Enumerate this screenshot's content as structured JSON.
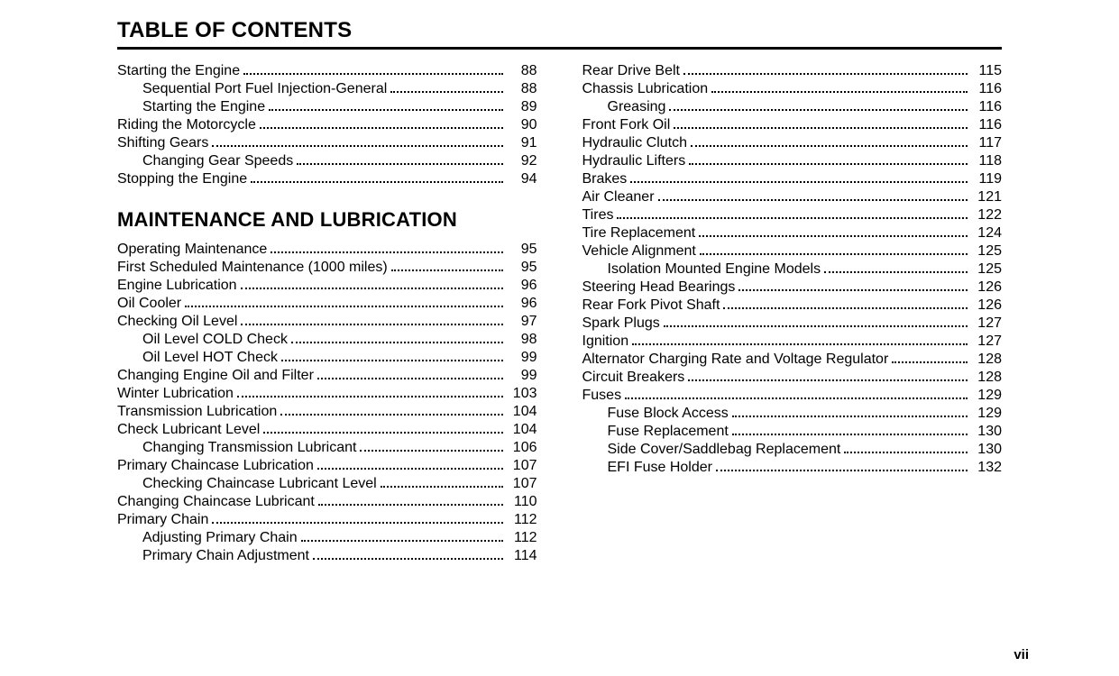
{
  "title": "TABLE OF CONTENTS",
  "pageNumber": "vii",
  "fonts": {
    "body_pt": 16,
    "title_pt": 24,
    "heading_pt": 22
  },
  "colors": {
    "text": "#000000",
    "bg": "#ffffff",
    "rule": "#000000"
  },
  "leftColumn": [
    {
      "type": "entry",
      "indent": 0,
      "text": "Starting the Engine",
      "page": "88"
    },
    {
      "type": "entry",
      "indent": 1,
      "text": "Sequential Port Fuel Injection-General",
      "page": "88"
    },
    {
      "type": "entry",
      "indent": 1,
      "text": "Starting the Engine",
      "page": "89"
    },
    {
      "type": "entry",
      "indent": 0,
      "text": "Riding the Motorcycle",
      "page": "90"
    },
    {
      "type": "entry",
      "indent": 0,
      "text": "Shifting Gears",
      "page": "91"
    },
    {
      "type": "entry",
      "indent": 1,
      "text": "Changing Gear Speeds",
      "page": "92"
    },
    {
      "type": "entry",
      "indent": 0,
      "text": "Stopping the Engine",
      "page": "94"
    },
    {
      "type": "heading",
      "text": "MAINTENANCE AND LUBRICATION"
    },
    {
      "type": "entry",
      "indent": 0,
      "text": "Operating Maintenance",
      "page": "95"
    },
    {
      "type": "entry",
      "indent": 0,
      "text": "First Scheduled Maintenance (1000 miles)",
      "page": "95"
    },
    {
      "type": "entry",
      "indent": 0,
      "text": "Engine Lubrication",
      "page": "96"
    },
    {
      "type": "entry",
      "indent": 0,
      "text": "Oil Cooler",
      "page": "96"
    },
    {
      "type": "entry",
      "indent": 0,
      "text": "Checking Oil Level",
      "page": "97"
    },
    {
      "type": "entry",
      "indent": 1,
      "text": "Oil Level COLD Check",
      "page": "98"
    },
    {
      "type": "entry",
      "indent": 1,
      "text": "Oil Level HOT Check",
      "page": "99"
    },
    {
      "type": "entry",
      "indent": 0,
      "text": "Changing Engine Oil and Filter",
      "page": "99"
    },
    {
      "type": "entry",
      "indent": 0,
      "text": "Winter Lubrication",
      "page": "103"
    },
    {
      "type": "entry",
      "indent": 0,
      "text": "Transmission Lubrication",
      "page": "104"
    },
    {
      "type": "entry",
      "indent": 0,
      "text": "Check Lubricant Level",
      "page": "104"
    },
    {
      "type": "entry",
      "indent": 1,
      "text": "Changing Transmission Lubricant",
      "page": "106"
    },
    {
      "type": "entry",
      "indent": 0,
      "text": "Primary Chaincase Lubrication",
      "page": "107"
    },
    {
      "type": "entry",
      "indent": 1,
      "text": "Checking Chaincase Lubricant Level",
      "page": "107"
    },
    {
      "type": "entry",
      "indent": 0,
      "text": "Changing Chaincase Lubricant",
      "page": "110"
    },
    {
      "type": "entry",
      "indent": 0,
      "text": "Primary Chain",
      "page": "112"
    },
    {
      "type": "entry",
      "indent": 1,
      "text": "Adjusting Primary Chain",
      "page": "112"
    },
    {
      "type": "entry",
      "indent": 1,
      "text": "Primary Chain Adjustment",
      "page": "114"
    }
  ],
  "rightColumn": [
    {
      "type": "entry",
      "indent": 0,
      "text": "Rear Drive Belt",
      "page": "115"
    },
    {
      "type": "entry",
      "indent": 0,
      "text": "Chassis Lubrication",
      "page": "116"
    },
    {
      "type": "entry",
      "indent": 1,
      "text": "Greasing",
      "page": "116"
    },
    {
      "type": "entry",
      "indent": 0,
      "text": "Front Fork Oil",
      "page": "116"
    },
    {
      "type": "entry",
      "indent": 0,
      "text": "Hydraulic Clutch",
      "page": "117"
    },
    {
      "type": "entry",
      "indent": 0,
      "text": "Hydraulic Lifters",
      "page": "118"
    },
    {
      "type": "entry",
      "indent": 0,
      "text": "Brakes",
      "page": "119"
    },
    {
      "type": "entry",
      "indent": 0,
      "text": "Air Cleaner",
      "page": "121"
    },
    {
      "type": "entry",
      "indent": 0,
      "text": "Tires",
      "page": "122"
    },
    {
      "type": "entry",
      "indent": 0,
      "text": "Tire Replacement",
      "page": "124"
    },
    {
      "type": "entry",
      "indent": 0,
      "text": "Vehicle Alignment",
      "page": "125"
    },
    {
      "type": "entry",
      "indent": 1,
      "text": "Isolation Mounted Engine Models",
      "page": "125"
    },
    {
      "type": "entry",
      "indent": 0,
      "text": "Steering Head Bearings",
      "page": "126"
    },
    {
      "type": "entry",
      "indent": 0,
      "text": "Rear Fork Pivot Shaft",
      "page": "126"
    },
    {
      "type": "entry",
      "indent": 0,
      "text": "Spark Plugs",
      "page": "127"
    },
    {
      "type": "entry",
      "indent": 0,
      "text": "Ignition",
      "page": "127"
    },
    {
      "type": "entry",
      "indent": 0,
      "text": "Alternator Charging Rate and Voltage Regulator",
      "page": "128"
    },
    {
      "type": "entry",
      "indent": 0,
      "text": "Circuit Breakers",
      "page": "128"
    },
    {
      "type": "entry",
      "indent": 0,
      "text": "Fuses",
      "page": "129"
    },
    {
      "type": "entry",
      "indent": 1,
      "text": "Fuse Block Access",
      "page": "129"
    },
    {
      "type": "entry",
      "indent": 1,
      "text": "Fuse Replacement",
      "page": "130"
    },
    {
      "type": "entry",
      "indent": 1,
      "text": "Side Cover/Saddlebag Replacement",
      "page": "130"
    },
    {
      "type": "entry",
      "indent": 1,
      "text": "EFI Fuse Holder",
      "page": "132"
    }
  ]
}
